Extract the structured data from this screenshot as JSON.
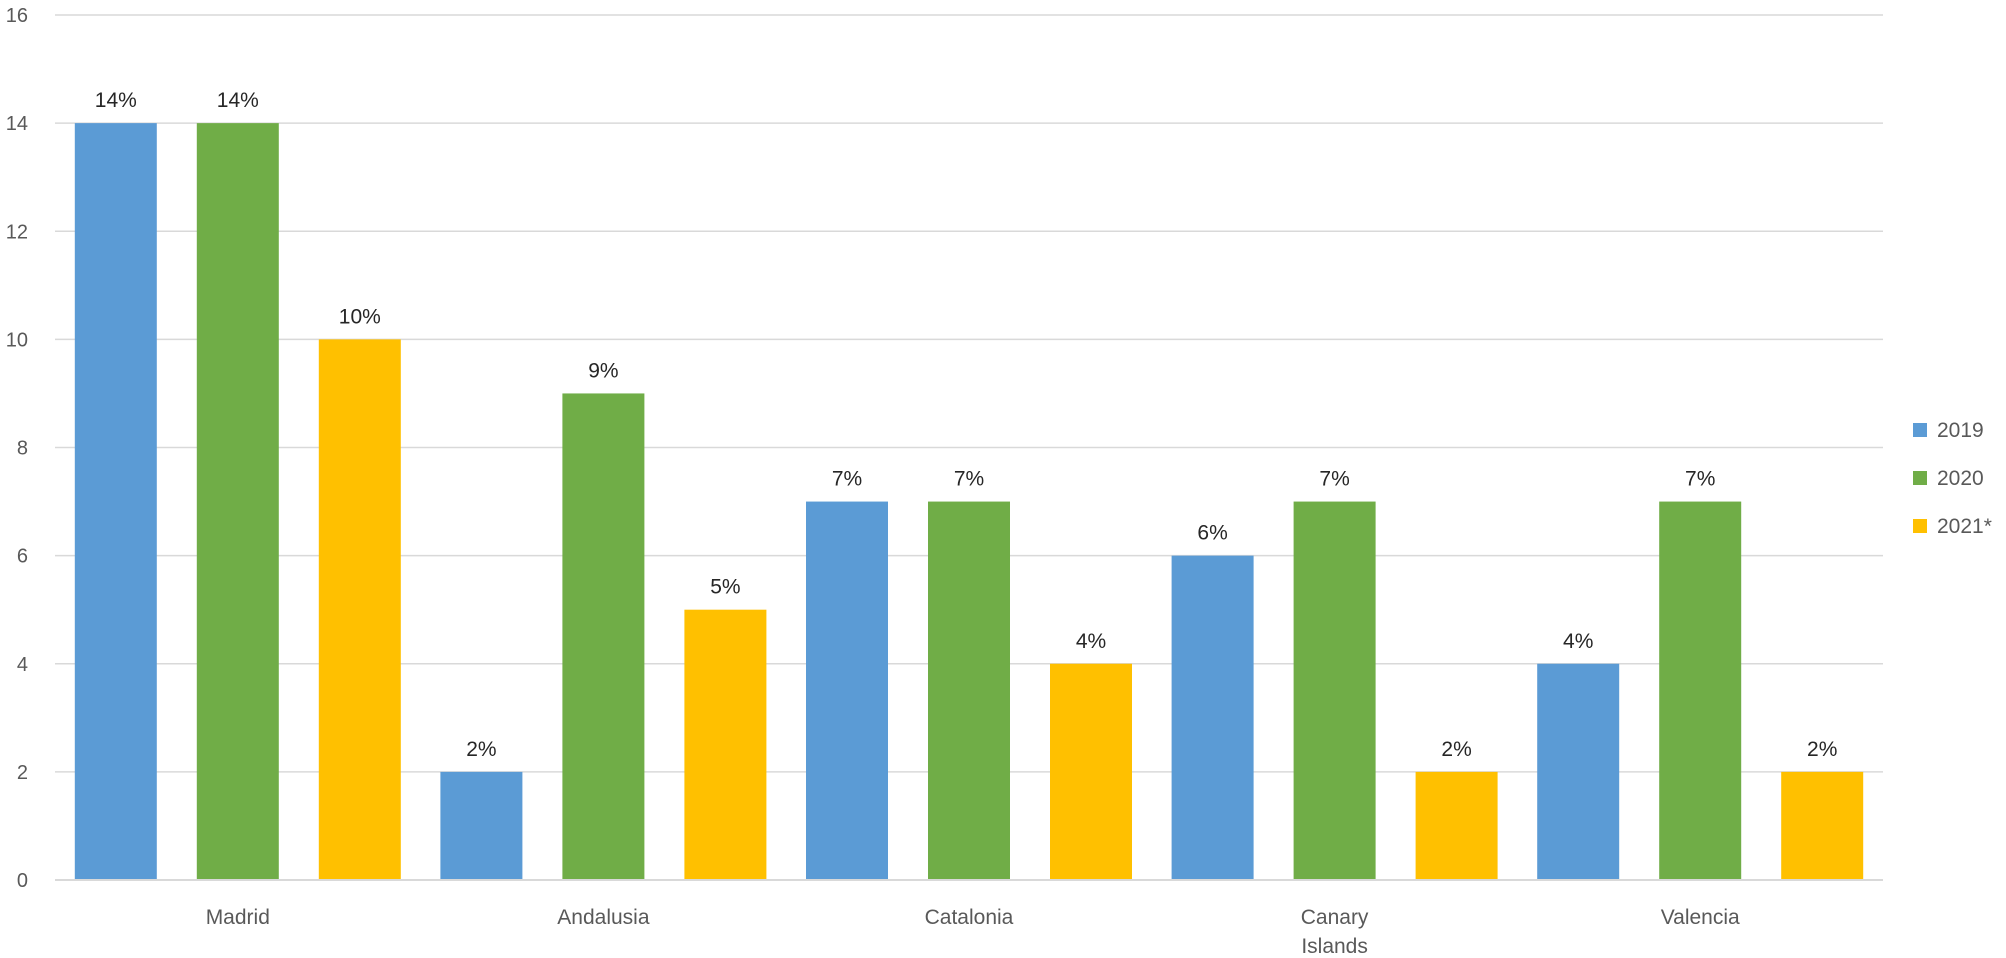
{
  "chart_data": {
    "type": "bar",
    "categories": [
      [
        "Madrid"
      ],
      [
        "Andalusia"
      ],
      [
        "Catalonia"
      ],
      [
        "Canary",
        "Islands"
      ],
      [
        "Valencia"
      ]
    ],
    "series": [
      {
        "name": "2019",
        "color": "#5B9BD5",
        "values": [
          14,
          2,
          7,
          6,
          4
        ],
        "labels": [
          "14%",
          "2%",
          "7%",
          "6%",
          "4%"
        ]
      },
      {
        "name": "2020",
        "color": "#70AD47",
        "values": [
          14,
          9,
          7,
          7,
          7
        ],
        "labels": [
          "14%",
          "9%",
          "7%",
          "7%",
          "7%"
        ]
      },
      {
        "name": "2021*",
        "color": "#FFC000",
        "values": [
          10,
          5,
          4,
          2,
          2
        ],
        "labels": [
          "10%",
          "5%",
          "4%",
          "2%",
          "2%"
        ]
      }
    ],
    "ylim": [
      0,
      16
    ],
    "yticks": [
      0,
      2,
      4,
      6,
      8,
      10,
      12,
      14,
      16
    ],
    "grid": true,
    "legend_position": "right"
  }
}
